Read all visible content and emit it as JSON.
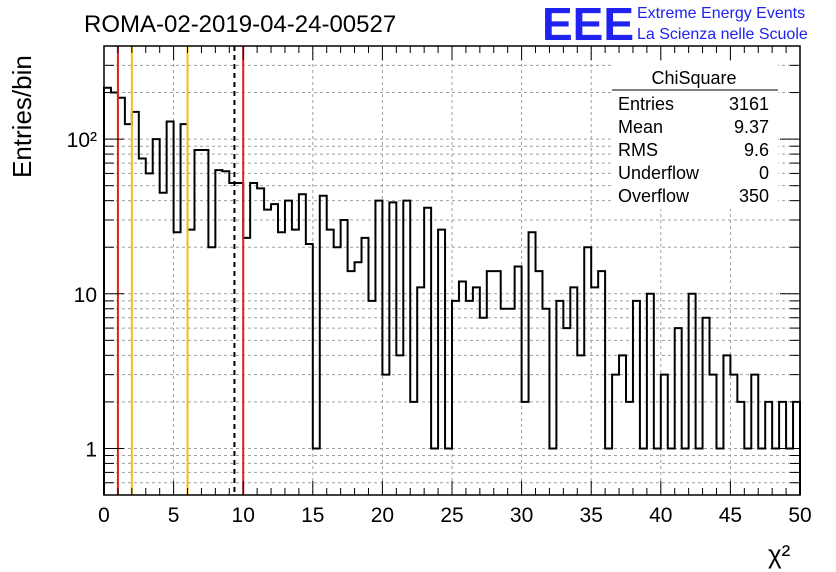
{
  "logo": {
    "mark": "EEE",
    "line1": "Extreme Energy Events",
    "line2": "La Scienza nelle Scuole"
  },
  "stats": {
    "title": "ChiSquare",
    "rows": [
      {
        "label": "Entries",
        "value": "3161"
      },
      {
        "label": "Mean",
        "value": "9.37"
      },
      {
        "label": "RMS",
        "value": "9.6"
      },
      {
        "label": "Underflow",
        "value": "0"
      },
      {
        "label": "Overflow",
        "value": "350"
      }
    ]
  },
  "colors": {
    "red_line": "#e0201a",
    "yellow_line": "#f2c010",
    "grid": "#a0a0a0",
    "logo": "#1f22f0"
  },
  "chart_data": {
    "type": "bar",
    "title": "ROMA-02-2019-04-24-00527",
    "xlabel": "χ²",
    "ylabel": "Entries/bin",
    "xlim": [
      0,
      50
    ],
    "ylim": [
      0.5,
      400
    ],
    "yscale": "log",
    "grid": true,
    "bin_width": 0.5,
    "x_ticks": [
      0,
      5,
      10,
      15,
      20,
      25,
      30,
      35,
      40,
      45,
      50
    ],
    "y_ticks": [
      {
        "value": 1,
        "label": "1"
      },
      {
        "value": 10,
        "label": "10"
      },
      {
        "value": 100,
        "label": "10²"
      }
    ],
    "series": [
      {
        "values": [
          215,
          200,
          185,
          125,
          150,
          75,
          60,
          100,
          45,
          130,
          25,
          125,
          26,
          85,
          85,
          20,
          63,
          62,
          52,
          52,
          23,
          52,
          48,
          35,
          38,
          25,
          40,
          26,
          44,
          21,
          1,
          43,
          26,
          20,
          30,
          14,
          16,
          23,
          9,
          40,
          3,
          39,
          4,
          40,
          2,
          11,
          36,
          1,
          26,
          1,
          9,
          12,
          9,
          11,
          7,
          14,
          14,
          8,
          8,
          15,
          2,
          25,
          14,
          8,
          1,
          9,
          6,
          11,
          4,
          20,
          11,
          14,
          1,
          3,
          4,
          2,
          9,
          1,
          10,
          1,
          3,
          1,
          6,
          1,
          10,
          1,
          7,
          3,
          1,
          4,
          3,
          2,
          1,
          3,
          1,
          2,
          1,
          2,
          1,
          2
        ]
      }
    ],
    "vlines": [
      {
        "x": 1,
        "color": "red",
        "style": "solid"
      },
      {
        "x": 2,
        "color": "yellow",
        "style": "solid"
      },
      {
        "x": 6,
        "color": "yellow",
        "style": "solid"
      },
      {
        "x": 9.37,
        "color": "black",
        "style": "dashed"
      },
      {
        "x": 10,
        "color": "red",
        "style": "solid"
      }
    ],
    "legend": "top-right"
  }
}
